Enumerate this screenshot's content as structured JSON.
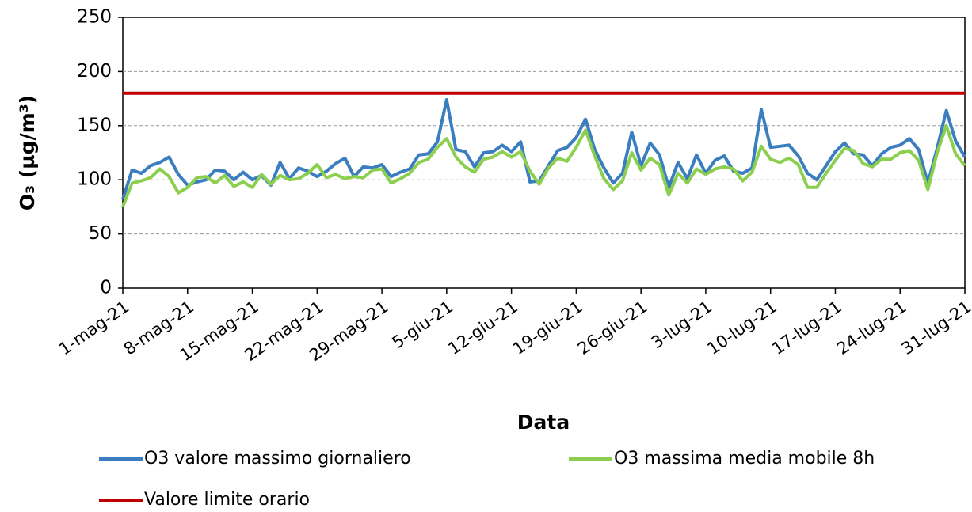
{
  "chart_data": {
    "type": "line",
    "x_label": "Data",
    "y_label": "O₃ (µg/m³)",
    "categories": [
      "1-mag-21",
      null,
      null,
      null,
      null,
      null,
      null,
      "8-mag-21",
      null,
      null,
      null,
      null,
      null,
      null,
      "15-mag-21",
      null,
      null,
      null,
      null,
      null,
      null,
      "22-mag-21",
      null,
      null,
      null,
      null,
      null,
      null,
      "29-mag-21",
      null,
      null,
      null,
      null,
      null,
      null,
      "5-giu-21",
      null,
      null,
      null,
      null,
      null,
      null,
      "12-giu-21",
      null,
      null,
      null,
      null,
      null,
      null,
      "19-giu-21",
      null,
      null,
      null,
      null,
      null,
      null,
      "26-giu-21",
      null,
      null,
      null,
      null,
      null,
      null,
      "3-lug-21",
      null,
      null,
      null,
      null,
      null,
      null,
      "10-lug-21",
      null,
      null,
      null,
      null,
      null,
      null,
      "17-lug-21",
      null,
      null,
      null,
      null,
      null,
      null,
      "24-lug-21",
      null,
      null,
      null,
      null,
      null,
      null,
      "31-lug-21"
    ],
    "series": [
      {
        "name": "O3 valore massimo giornaliero",
        "color": "#3a7ebf",
        "values": [
          82,
          109,
          106,
          113,
          116,
          121,
          105,
          95,
          98,
          100,
          109,
          108,
          100,
          107,
          100,
          104,
          95,
          116,
          101,
          111,
          108,
          103,
          108,
          115,
          120,
          103,
          112,
          111,
          114,
          103,
          107,
          110,
          123,
          124,
          135,
          174,
          128,
          126,
          112,
          125,
          126,
          132,
          126,
          135,
          98,
          99,
          113,
          127,
          130,
          139,
          156,
          128,
          111,
          97,
          106,
          144,
          113,
          134,
          123,
          93,
          116,
          101,
          123,
          106,
          118,
          122,
          108,
          106,
          111,
          165,
          130,
          131,
          132,
          122,
          106,
          100,
          113,
          126,
          134,
          124,
          123,
          113,
          124,
          130,
          132,
          138,
          128,
          97,
          129,
          164,
          136,
          121
        ]
      },
      {
        "name": "O3 massima media mobile 8h",
        "color": "#8ccf4f",
        "values": [
          75,
          97,
          99,
          102,
          110,
          103,
          88,
          93,
          102,
          103,
          97,
          104,
          94,
          98,
          93,
          105,
          96,
          104,
          100,
          101,
          106,
          114,
          102,
          105,
          101,
          103,
          102,
          109,
          110,
          97,
          101,
          106,
          116,
          119,
          130,
          138,
          121,
          112,
          107,
          119,
          121,
          126,
          121,
          126,
          108,
          96,
          111,
          120,
          117,
          130,
          146,
          122,
          101,
          91,
          99,
          125,
          109,
          120,
          114,
          86,
          106,
          97,
          110,
          105,
          110,
          112,
          110,
          99,
          107,
          131,
          119,
          116,
          120,
          114,
          93,
          93,
          106,
          118,
          129,
          127,
          115,
          112,
          119,
          119,
          125,
          127,
          118,
          91,
          125,
          150,
          124,
          113
        ]
      },
      {
        "name": "Valore limite orario",
        "color": "#c00000",
        "values": [
          180,
          180,
          180,
          180,
          180,
          180,
          180,
          180,
          180,
          180,
          180,
          180,
          180,
          180,
          180,
          180,
          180,
          180,
          180,
          180,
          180,
          180,
          180,
          180,
          180,
          180,
          180,
          180,
          180,
          180,
          180,
          180,
          180,
          180,
          180,
          180,
          180,
          180,
          180,
          180,
          180,
          180,
          180,
          180,
          180,
          180,
          180,
          180,
          180,
          180,
          180,
          180,
          180,
          180,
          180,
          180,
          180,
          180,
          180,
          180,
          180,
          180,
          180,
          180,
          180,
          180,
          180,
          180,
          180,
          180,
          180,
          180,
          180,
          180,
          180,
          180,
          180,
          180,
          180,
          180,
          180,
          180,
          180,
          180,
          180,
          180,
          180,
          180,
          180,
          180,
          180,
          180
        ]
      }
    ],
    "ylim": [
      0,
      250
    ],
    "yticks": [
      0,
      50,
      100,
      150,
      200,
      250
    ],
    "grid": true
  }
}
